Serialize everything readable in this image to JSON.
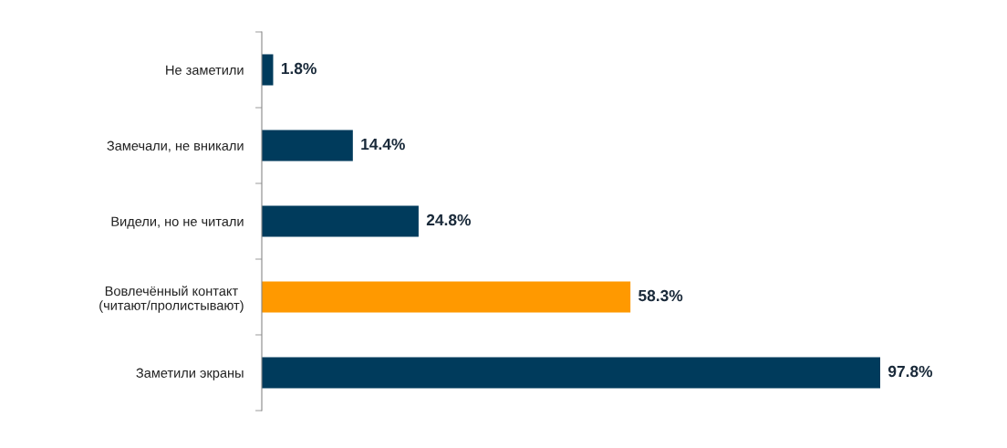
{
  "chart_data": {
    "type": "bar",
    "orientation": "horizontal",
    "categories": [
      "Не заметили",
      "Замечали, не вникали",
      "Видели, но не читали",
      "Вовлечённый контакт\n(читают/пролистывают)",
      "Заметили экраны"
    ],
    "values": [
      1.8,
      14.4,
      24.8,
      58.3,
      97.8
    ],
    "colors": [
      "#003b5c",
      "#003b5c",
      "#003b5c",
      "#ff9900",
      "#003b5c"
    ],
    "value_labels": [
      "1.8%",
      "14.4%",
      "24.8%",
      "58.3%",
      "97.8%"
    ],
    "grid": false,
    "legend": false
  }
}
